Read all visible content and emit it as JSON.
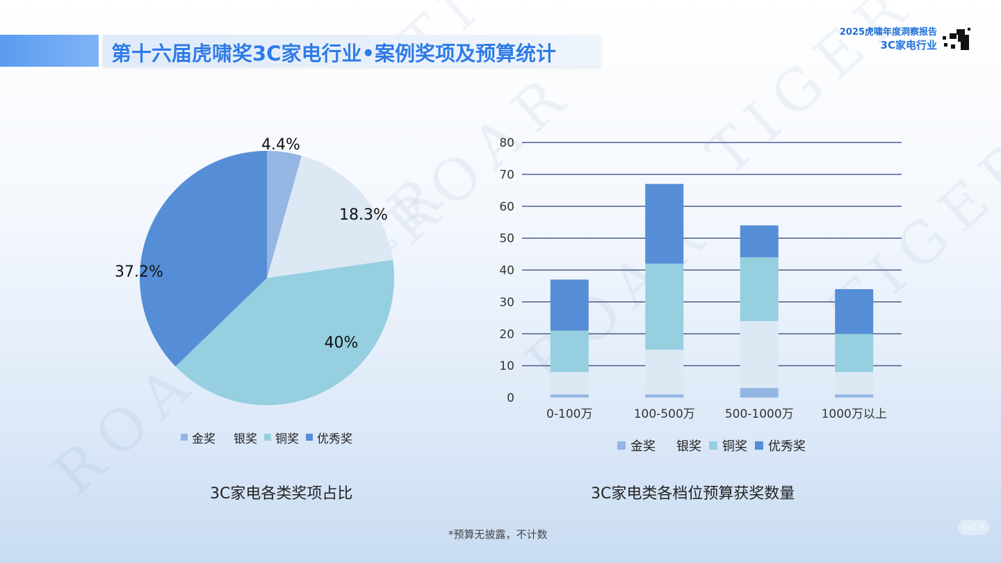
{
  "header": {
    "title": "第十六届虎啸奖3C家电行业•案例奖项及预算统计",
    "brand_line1": "2025虎啸年度洞察报告",
    "brand_line2": "3C家电行业"
  },
  "watermark": {
    "word1": "TIGER",
    "word2": "ROAR"
  },
  "colors": {
    "gold": "#94b6e3",
    "silver": "#dce8f4",
    "bronze": "#95cfe0",
    "excellent": "#558ed6",
    "accent": "#2f7be5"
  },
  "chart_data": [
    {
      "type": "pie",
      "title": "3C家电各类奖项占比",
      "labels": [
        "金奖",
        "银奖",
        "铜奖",
        "优秀奖"
      ],
      "values": [
        4.4,
        18.3,
        40,
        37.2
      ],
      "value_labels": [
        "4.4%",
        "18.3%",
        "40%",
        "37.2%"
      ],
      "legend": "bottom"
    },
    {
      "type": "bar",
      "stacked": true,
      "title": "3C家电类各档位预算获奖数量",
      "categories": [
        "0-100万",
        "100-500万",
        "500-1000万",
        "1000万以上"
      ],
      "series": [
        {
          "name": "金奖",
          "values": [
            1,
            1,
            3,
            1
          ]
        },
        {
          "name": "银奖",
          "values": [
            7,
            14,
            21,
            7
          ]
        },
        {
          "name": "铜奖",
          "values": [
            13,
            27,
            20,
            12
          ]
        },
        {
          "name": "优秀奖",
          "values": [
            16,
            25,
            10,
            14
          ]
        }
      ],
      "ylim": [
        0,
        80
      ],
      "yticks": [
        0,
        10,
        20,
        30,
        40,
        50,
        60,
        70,
        80
      ],
      "grid": true,
      "legend": "bottom"
    }
  ],
  "footnote": "*预算无披露，不计数",
  "corner_badge": "小红书"
}
